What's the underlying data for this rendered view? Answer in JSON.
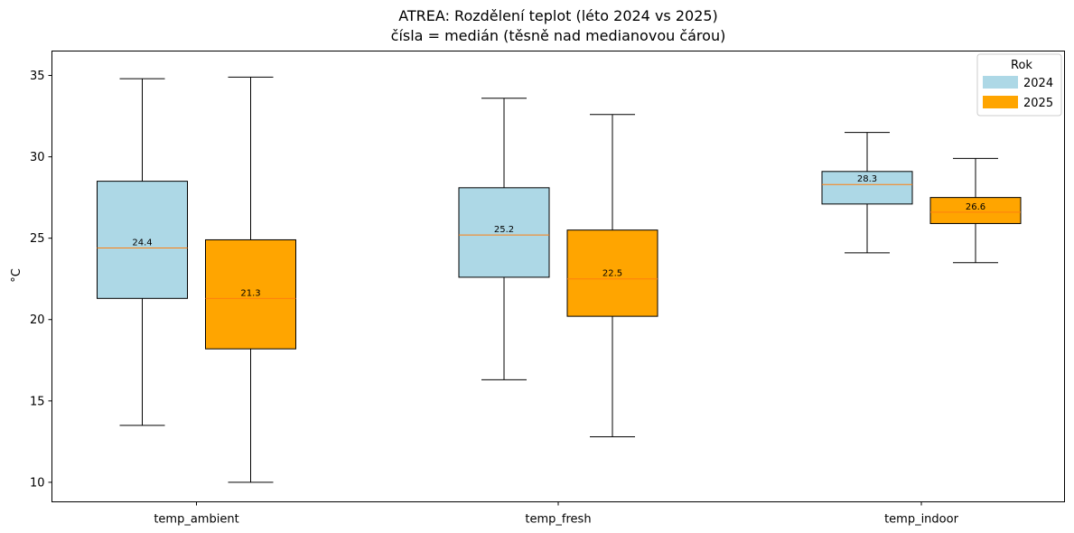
{
  "chart_data": {
    "type": "box",
    "title": "ATREA: Rozdělení teplot (léto 2024 vs 2025)",
    "subtitle": "čísla = medián (těsně nad medianovou čárou)",
    "xlabel": "",
    "ylabel": "°C",
    "ylim": [
      8.8,
      36.5
    ],
    "yticks": [
      10,
      15,
      20,
      25,
      30,
      35
    ],
    "grid": false,
    "categories": [
      "temp_ambient",
      "temp_fresh",
      "temp_indoor"
    ],
    "series": [
      {
        "name": "2024",
        "color": "#add8e6",
        "boxes": [
          {
            "whislo": 13.5,
            "q1": 21.3,
            "med": 24.4,
            "q3": 28.5,
            "whishi": 34.8,
            "label": "24.4"
          },
          {
            "whislo": 16.3,
            "q1": 22.6,
            "med": 25.2,
            "q3": 28.1,
            "whishi": 33.6,
            "label": "25.2"
          },
          {
            "whislo": 24.1,
            "q1": 27.1,
            "med": 28.3,
            "q3": 29.1,
            "whishi": 31.5,
            "label": "28.3"
          }
        ]
      },
      {
        "name": "2025",
        "color": "#ffa500",
        "boxes": [
          {
            "whislo": 10.0,
            "q1": 18.2,
            "med": 21.3,
            "q3": 24.9,
            "whishi": 34.9,
            "label": "21.3"
          },
          {
            "whislo": 12.8,
            "q1": 20.2,
            "med": 22.5,
            "q3": 25.5,
            "whishi": 32.6,
            "label": "22.5"
          },
          {
            "whislo": 23.5,
            "q1": 25.9,
            "med": 26.6,
            "q3": 27.5,
            "whishi": 29.9,
            "label": "26.6"
          }
        ]
      }
    ],
    "median_color": "#ff7f0e",
    "legend": {
      "title": "Rok",
      "position": "top-right"
    }
  }
}
